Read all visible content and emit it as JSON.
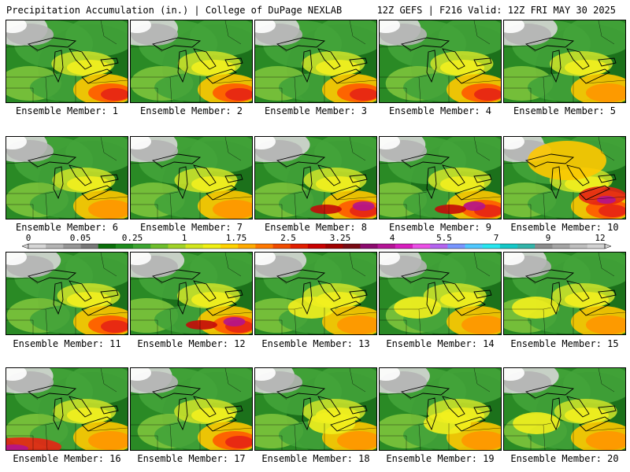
{
  "header": {
    "left": "Precipitation Accumulation (in.) | College of DuPage NEXLAB",
    "right": "12Z GEFS | F216 Valid: 12Z FRI MAY 30 2025"
  },
  "colorbar": {
    "tick_labels": [
      "0",
      "0.05",
      "0.25",
      "1",
      "1.75",
      "2.5",
      "3.25",
      "4",
      "5.5",
      "7",
      "9",
      "12"
    ],
    "colors": [
      "#d6d6d6",
      "#b4b4b4",
      "#969696",
      "#787878",
      "#0a6e0a",
      "#1e8c1e",
      "#3ca532",
      "#6ebe2d",
      "#a0d228",
      "#d2e61e",
      "#f0f014",
      "#ffd200",
      "#ffaa00",
      "#ff7800",
      "#f04b00",
      "#e11e00",
      "#c80000",
      "#a00000",
      "#780a14",
      "#8c0a6e",
      "#b41496",
      "#d71ebe",
      "#eb50e6",
      "#b464f0",
      "#7896ff",
      "#50c8ff",
      "#28e6f0",
      "#14c8c8",
      "#32b4aa",
      "#8c8c8c",
      "#a5a5a5",
      "#bebebe",
      "#d2d2d2"
    ]
  },
  "panels": [
    {
      "label": "Ensemble Member: 1"
    },
    {
      "label": "Ensemble Member: 2"
    },
    {
      "label": "Ensemble Member: 3"
    },
    {
      "label": "Ensemble Member: 4"
    },
    {
      "label": "Ensemble Member: 5"
    },
    {
      "label": "Ensemble Member: 6"
    },
    {
      "label": "Ensemble Member: 7"
    },
    {
      "label": "Ensemble Member: 8"
    },
    {
      "label": "Ensemble Member: 9"
    },
    {
      "label": "Ensemble Member: 10"
    },
    {
      "label": "Ensemble Member: 11"
    },
    {
      "label": "Ensemble Member: 12"
    },
    {
      "label": "Ensemble Member: 13"
    },
    {
      "label": "Ensemble Member: 14"
    },
    {
      "label": "Ensemble Member: 15"
    },
    {
      "label": "Ensemble Member: 16"
    },
    {
      "label": "Ensemble Member: 17"
    },
    {
      "label": "Ensemble Member: 18"
    },
    {
      "label": "Ensemble Member: 19"
    },
    {
      "label": "Ensemble Member: 20"
    }
  ]
}
